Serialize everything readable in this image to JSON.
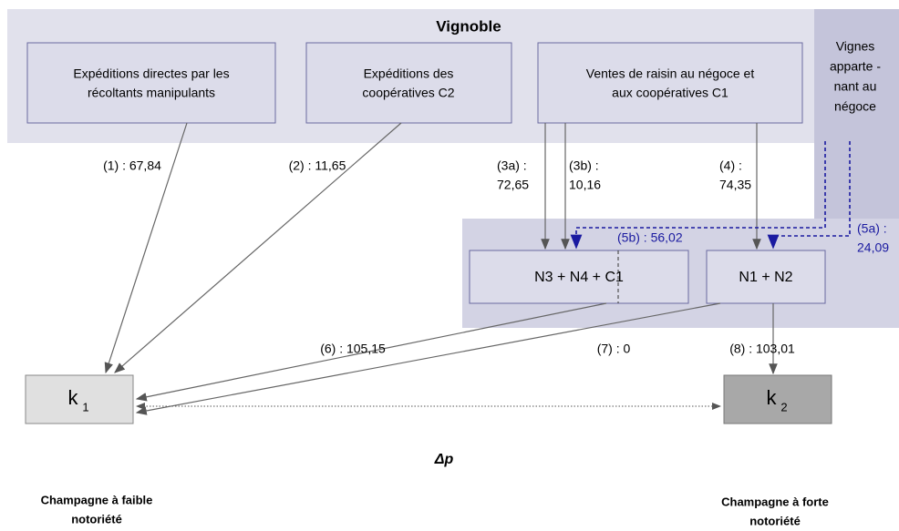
{
  "title": "Vignoble",
  "sources": [
    {
      "lines": [
        "Expéditions directes par les",
        "récoltants manipulants"
      ]
    },
    {
      "lines": [
        "Expéditions des",
        "coopératives C2"
      ]
    },
    {
      "lines": [
        "Ventes de raisin au négoce et",
        "aux coopératives C1"
      ]
    }
  ],
  "side_source": {
    "lines": [
      "Vignes",
      "apparte -",
      "nant au",
      "négoce"
    ]
  },
  "intermediates": [
    {
      "label": "N3 + N4 + C1"
    },
    {
      "label": "N1 + N2"
    }
  ],
  "flows": [
    {
      "lines": [
        "(1) : 67,84"
      ]
    },
    {
      "lines": [
        "(2) : 11,65"
      ]
    },
    {
      "lines": [
        "(3a)  :",
        "72,65"
      ]
    },
    {
      "lines": [
        "(3b) :",
        "10,16"
      ]
    },
    {
      "lines": [
        "(4) :",
        "74,35"
      ]
    },
    {
      "lines": [
        "(5b) : 56,02"
      ]
    },
    {
      "lines": [
        "(5a) :",
        "24,09"
      ]
    },
    {
      "lines": [
        "(6) : 105,15"
      ]
    },
    {
      "lines": [
        "(7) : 0"
      ]
    },
    {
      "lines": [
        "(8) : 103,01"
      ]
    }
  ],
  "outcomes": [
    {
      "symbol": "k",
      "subscript": "1",
      "lines": [
        "Champagne à faible",
        "notoriété"
      ]
    },
    {
      "symbol": "k",
      "subscript": "2",
      "lines": [
        "Champagne à forte",
        "notoriété"
      ]
    }
  ],
  "gap_label": "Δp"
}
